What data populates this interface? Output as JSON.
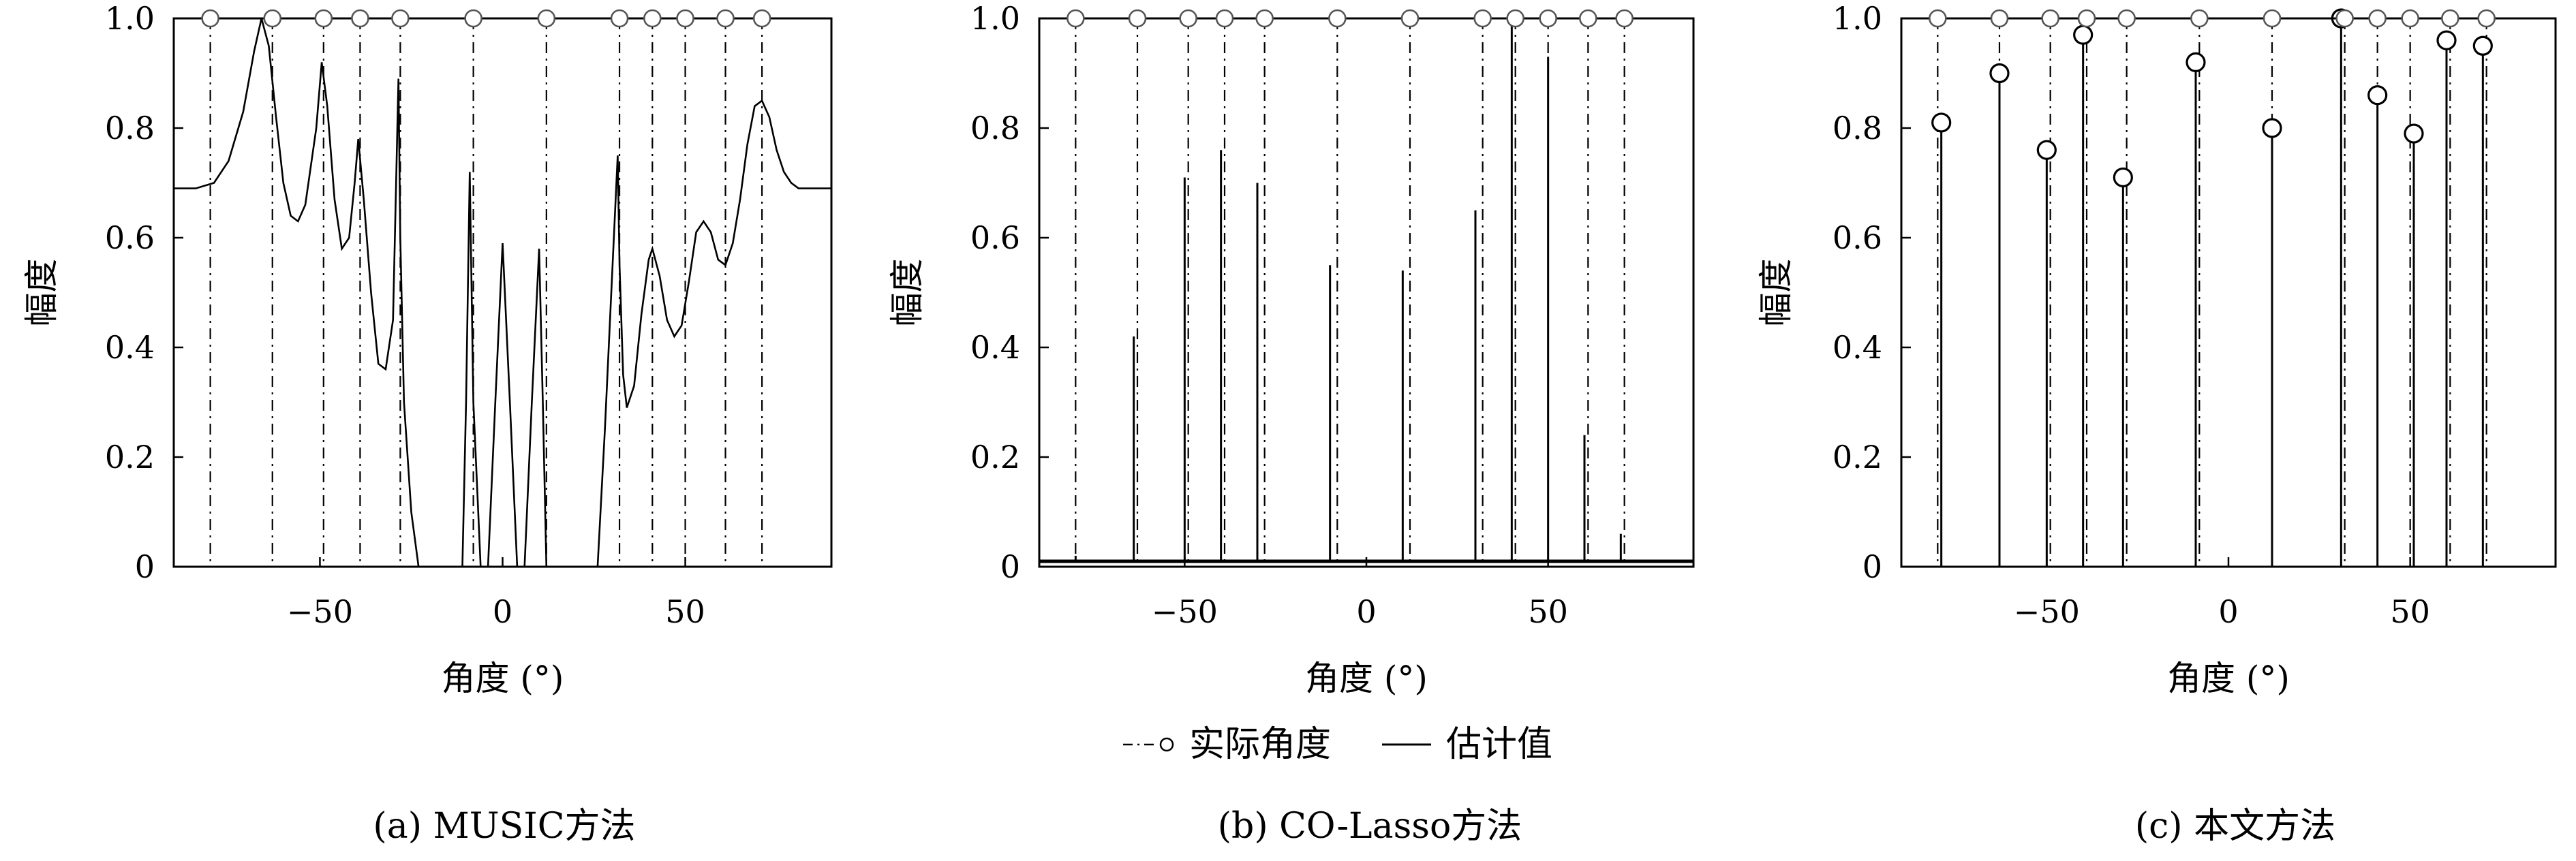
{
  "legend": {
    "actual_label": "实际角度",
    "estimate_label": "估计值"
  },
  "chart_data": [
    {
      "type": "line",
      "caption": "(a) MUSIC方法",
      "xlabel": "角度 (°)",
      "ylabel": "幅度",
      "xlim": [
        -90,
        90
      ],
      "ylim": [
        0,
        1.0
      ],
      "xticks": [
        -50,
        0,
        50
      ],
      "xtick_labels": [
        "−50",
        "0",
        "50"
      ],
      "yticks": [
        0,
        0.2,
        0.4,
        0.6,
        0.8,
        1.0
      ],
      "ytick_labels": [
        "0",
        "0.2",
        "0.4",
        "0.6",
        "0.8",
        "1.0"
      ],
      "true_angles": [
        -80,
        -63,
        -49,
        -39,
        -28,
        -8,
        12,
        32,
        41,
        50,
        61,
        71
      ],
      "series": [
        {
          "kind": "curve",
          "x": [
            -90,
            -84,
            -79,
            -75,
            -71,
            -68,
            -66,
            -64,
            -62,
            -60,
            -58,
            -56,
            -54,
            -51,
            -49.5,
            -48,
            -46,
            -44,
            -42,
            -40.5,
            -39.5,
            -38,
            -36,
            -34,
            -32,
            -30,
            -28.5,
            -28,
            -27,
            -25,
            -23,
            -11,
            -10,
            -9,
            -8,
            -6,
            -4,
            -2,
            0,
            2,
            4,
            6,
            8,
            10,
            11,
            12,
            14,
            26,
            28,
            31.5,
            32,
            33,
            34,
            36,
            38,
            40,
            41,
            43,
            45,
            47,
            49,
            51,
            53,
            55,
            57,
            59,
            61,
            63,
            65,
            67,
            69,
            71,
            73,
            75,
            77,
            79,
            81,
            84,
            90
          ],
          "y": [
            0.69,
            0.69,
            0.7,
            0.74,
            0.83,
            0.94,
            1.0,
            0.95,
            0.82,
            0.7,
            0.64,
            0.63,
            0.66,
            0.8,
            0.92,
            0.84,
            0.67,
            0.58,
            0.6,
            0.7,
            0.78,
            0.67,
            0.5,
            0.37,
            0.36,
            0.45,
            0.89,
            0.6,
            0.3,
            0.1,
            0.0,
            0.0,
            0.3,
            0.72,
            0.3,
            0.0,
            0.0,
            0.3,
            0.59,
            0.3,
            0.0,
            0.0,
            0.3,
            0.58,
            0.3,
            0.0,
            0.0,
            0.0,
            0.25,
            0.75,
            0.55,
            0.35,
            0.29,
            0.33,
            0.46,
            0.56,
            0.58,
            0.53,
            0.45,
            0.42,
            0.44,
            0.52,
            0.61,
            0.63,
            0.61,
            0.56,
            0.55,
            0.59,
            0.67,
            0.77,
            0.84,
            0.85,
            0.82,
            0.76,
            0.72,
            0.7,
            0.69,
            0.69,
            0.69
          ]
        }
      ]
    },
    {
      "type": "line",
      "caption": "(b) CO-Lasso方法",
      "xlabel": "角度 (°)",
      "ylabel": "幅度",
      "xlim": [
        -90,
        90
      ],
      "ylim": [
        0,
        1.0
      ],
      "xticks": [
        -50,
        0,
        50
      ],
      "xtick_labels": [
        "−50",
        "0",
        "50"
      ],
      "yticks": [
        0,
        0.2,
        0.4,
        0.6,
        0.8,
        1.0
      ],
      "ytick_labels": [
        "0",
        "0.2",
        "0.4",
        "0.6",
        "0.8",
        "1.0"
      ],
      "true_angles": [
        -80,
        -63,
        -49,
        -39,
        -28,
        -8,
        12,
        32,
        41,
        50,
        61,
        71
      ],
      "baseline": 0.01,
      "series": [
        {
          "kind": "spikes",
          "x": [
            -80,
            -64,
            -50,
            -40,
            -30,
            -10,
            10,
            30,
            40,
            50,
            60,
            70
          ],
          "y": [
            0.02,
            0.42,
            0.71,
            0.76,
            0.7,
            0.55,
            0.54,
            0.65,
            1.0,
            0.93,
            0.24,
            0.06
          ]
        }
      ]
    },
    {
      "type": "scatter",
      "caption": "(c) 本文方法",
      "xlabel": "角度 (°)",
      "ylabel": "幅度",
      "xlim": [
        -90,
        90
      ],
      "ylim": [
        0,
        1.0
      ],
      "xticks": [
        -50,
        0,
        50
      ],
      "xtick_labels": [
        "−50",
        "0",
        "50"
      ],
      "yticks": [
        0,
        0.2,
        0.4,
        0.6,
        0.8,
        1.0
      ],
      "ytick_labels": [
        "0",
        "0.2",
        "0.4",
        "0.6",
        "0.8",
        "1.0"
      ],
      "true_angles": [
        -80,
        -63,
        -49,
        -39,
        -28,
        -8,
        12,
        32,
        41,
        50,
        61,
        71
      ],
      "series": [
        {
          "kind": "stems",
          "x": [
            -79,
            -63,
            -50,
            -40,
            -29,
            -9,
            12,
            31,
            41,
            51,
            60,
            70
          ],
          "y": [
            0.81,
            0.9,
            0.76,
            0.97,
            0.71,
            0.92,
            0.8,
            1.0,
            0.86,
            0.79,
            0.96,
            0.95
          ]
        }
      ]
    }
  ]
}
